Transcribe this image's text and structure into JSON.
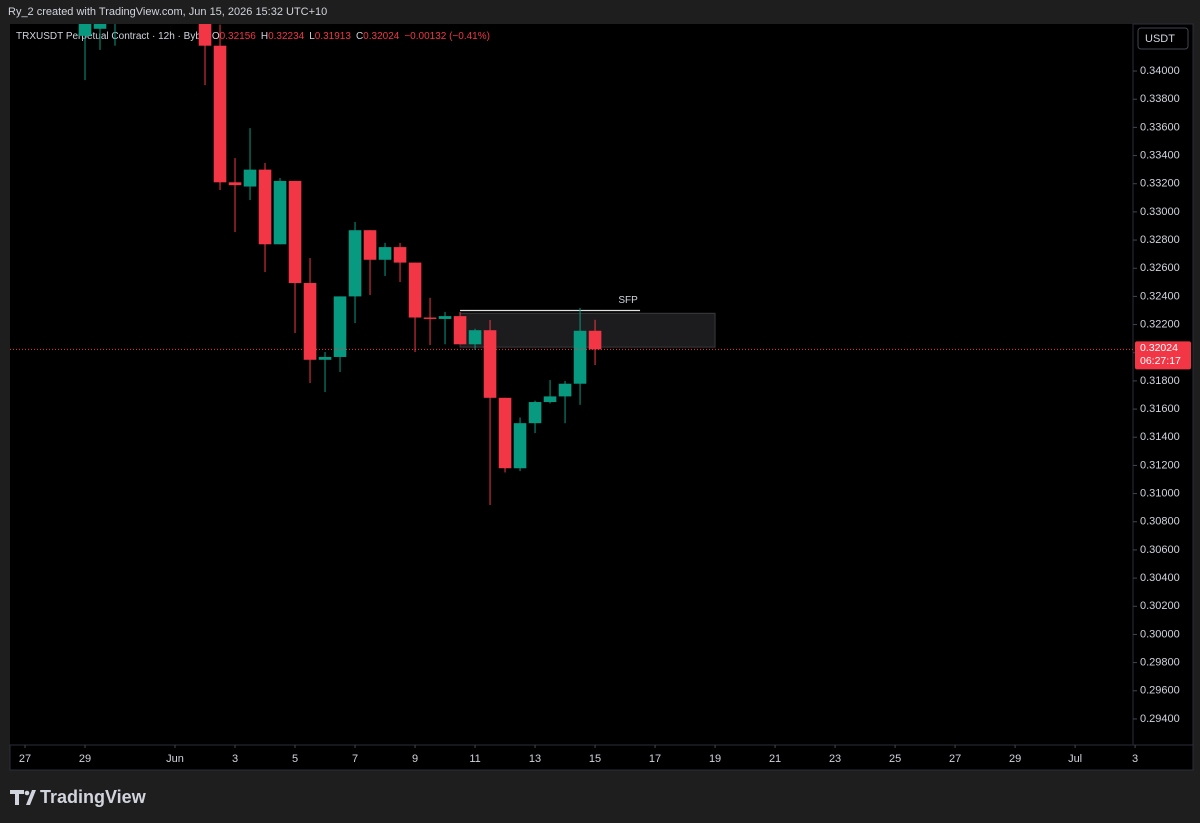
{
  "header": {
    "credit": "Ry_2 created with TradingView.com, Jun 15, 2026 15:32 UTC+10",
    "logo": "TradingView"
  },
  "chart_data": {
    "type": "candlestick",
    "title": "TRXUSDT Perpetual Contract · 12h · Bybit",
    "legend_labels": [
      "O",
      "H",
      "L",
      "C"
    ],
    "change": "−0.00132 (−0.41%)",
    "currency": "USDT",
    "countdown": "06:27:17",
    "colors": {
      "up": "#089981",
      "down": "#f23645"
    },
    "series": {
      "x": [
        2,
        2.5,
        3,
        6,
        6.5,
        7,
        7.5,
        8,
        8.5,
        9,
        9.5,
        10,
        10.5,
        11,
        11.5,
        12,
        12.5,
        13,
        13.5,
        14,
        14.5,
        15,
        15.5,
        16,
        16.5,
        17,
        17.5,
        18,
        18.5,
        19
      ],
      "open": [
        0.3425,
        0.343,
        0.344,
        0.345,
        0.3418,
        0.3321,
        0.3318,
        0.333,
        0.3277,
        0.3322,
        0.32495,
        0.3195,
        0.3197,
        0.324,
        0.3287,
        0.3266,
        0.3275,
        0.3264,
        0.3225,
        0.3224,
        0.3226,
        0.3206,
        0.3216,
        0.3168,
        0.3118,
        0.315,
        0.3165,
        0.3169,
        0.3178,
        0.32156
      ],
      "high": [
        0.345,
        0.345,
        0.3452,
        0.3455,
        0.3433,
        0.33382,
        0.33595,
        0.33347,
        0.3324,
        0.3322,
        0.32672,
        0.32005,
        0.324,
        0.32928,
        0.3287,
        0.3278,
        0.3278,
        0.3264,
        0.3239,
        0.3229,
        0.3229,
        0.3217,
        0.32232,
        0.3168,
        0.3154,
        0.3166,
        0.31806,
        0.318,
        0.32318,
        0.32234
      ],
      "low": [
        0.33936,
        0.3415,
        0.3418,
        0.339,
        0.33155,
        0.32857,
        0.33084,
        0.32573,
        0.3277,
        0.3214,
        0.31785,
        0.31721,
        0.31863,
        0.32211,
        0.3241,
        0.32545,
        0.32502,
        0.32005,
        0.32055,
        0.3206,
        0.3206,
        0.3202,
        0.30919,
        0.3115,
        0.3116,
        0.3143,
        0.3164,
        0.315,
        0.3163,
        0.31913
      ],
      "close": [
        0.344,
        0.3445,
        0.3448,
        0.3418,
        0.3321,
        0.3319,
        0.333,
        0.3277,
        0.3322,
        0.32495,
        0.3195,
        0.3197,
        0.324,
        0.3287,
        0.3266,
        0.3275,
        0.3264,
        0.3225,
        0.3224,
        0.3226,
        0.3206,
        0.3216,
        0.3168,
        0.3118,
        0.315,
        0.3165,
        0.3169,
        0.3178,
        0.32156,
        0.32024
      ]
    },
    "zone": {
      "x": [
        14.5,
        23
      ],
      "y": [
        0.3204,
        0.3228
      ]
    },
    "sfp": {
      "text": "SFP",
      "price": 0.323,
      "x": [
        14.5,
        20.5
      ]
    },
    "xlim": [
      -0.5,
      36.93
    ],
    "ylim": [
      0.29215,
      0.34334
    ],
    "xticks": [
      {
        "value": 0,
        "label": "27"
      },
      {
        "value": 2,
        "label": "29"
      },
      {
        "value": 5,
        "label": "Jun"
      },
      {
        "value": 7,
        "label": "3"
      },
      {
        "value": 9,
        "label": "5"
      },
      {
        "value": 11,
        "label": "7"
      },
      {
        "value": 13,
        "label": "9"
      },
      {
        "value": 15,
        "label": "11"
      },
      {
        "value": 17,
        "label": "13"
      },
      {
        "value": 19,
        "label": "15"
      },
      {
        "value": 21,
        "label": "17"
      },
      {
        "value": 23,
        "label": "19"
      },
      {
        "value": 25,
        "label": "21"
      },
      {
        "value": 27,
        "label": "23"
      },
      {
        "value": 29,
        "label": "25"
      },
      {
        "value": 31,
        "label": "27"
      },
      {
        "value": 33,
        "label": "29"
      },
      {
        "value": 35,
        "label": "Jul"
      },
      {
        "value": 37,
        "label": "3"
      }
    ],
    "yticks": [
      {
        "value": 0.294,
        "label": "0.29400"
      },
      {
        "value": 0.296,
        "label": "0.29600"
      },
      {
        "value": 0.298,
        "label": "0.29800"
      },
      {
        "value": 0.3,
        "label": "0.30000"
      },
      {
        "value": 0.302,
        "label": "0.30200"
      },
      {
        "value": 0.304,
        "label": "0.30400"
      },
      {
        "value": 0.306,
        "label": "0.30600"
      },
      {
        "value": 0.308,
        "label": "0.30800"
      },
      {
        "value": 0.31,
        "label": "0.31000"
      },
      {
        "value": 0.312,
        "label": "0.31200"
      },
      {
        "value": 0.314,
        "label": "0.31400"
      },
      {
        "value": 0.316,
        "label": "0.31600"
      },
      {
        "value": 0.318,
        "label": "0.31800"
      },
      {
        "value": 0.32,
        "label": "0.32000"
      },
      {
        "value": 0.322,
        "label": "0.32200"
      },
      {
        "value": 0.324,
        "label": "0.32400"
      },
      {
        "value": 0.326,
        "label": "0.32600"
      },
      {
        "value": 0.328,
        "label": "0.32800"
      },
      {
        "value": 0.33,
        "label": "0.33000"
      },
      {
        "value": 0.332,
        "label": "0.33200"
      },
      {
        "value": 0.334,
        "label": "0.33400"
      },
      {
        "value": 0.336,
        "label": "0.33600"
      },
      {
        "value": 0.338,
        "label": "0.33800"
      },
      {
        "value": 0.34,
        "label": "0.34000"
      }
    ],
    "grid": false
  }
}
